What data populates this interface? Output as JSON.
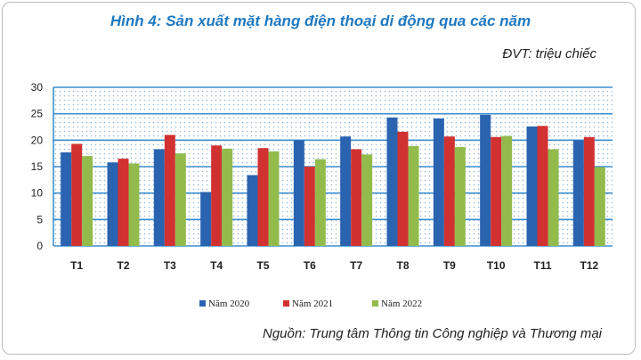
{
  "page": {
    "title": "Hình 4: Sản xuất mặt hàng điện thoại di động qua các năm",
    "unit": "ĐVT: triệu chiếc",
    "source": "Nguồn: Trung tâm Thông tin Công nghiệp và Thương mại"
  },
  "chart_data": {
    "type": "bar",
    "title": "Hình 4: Sản xuất mặt hàng điện thoại di động qua các năm",
    "xlabel": "",
    "ylabel": "",
    "ylim": [
      0,
      30
    ],
    "yticks": [
      0,
      5,
      10,
      15,
      20,
      25,
      30
    ],
    "grid": true,
    "legend_position": "bottom",
    "categories": [
      "T1",
      "T2",
      "T3",
      "T4",
      "T5",
      "T6",
      "T7",
      "T8",
      "T9",
      "T10",
      "T11",
      "T12"
    ],
    "series": [
      {
        "name": "Năm 2020",
        "color": "#2a63b0",
        "values": [
          17.7,
          15.8,
          18.3,
          10.2,
          13.4,
          20.0,
          20.7,
          24.3,
          24.1,
          24.8,
          22.6,
          20.0
        ]
      },
      {
        "name": "Năm 2021",
        "color": "#d23131",
        "values": [
          19.3,
          16.5,
          21.0,
          19.0,
          18.5,
          15.0,
          18.3,
          21.6,
          20.7,
          20.6,
          22.7,
          20.6
        ]
      },
      {
        "name": "Năm 2022",
        "color": "#92bb4c",
        "values": [
          17.0,
          15.6,
          17.5,
          18.4,
          17.9,
          16.4,
          17.3,
          18.9,
          18.7,
          20.8,
          18.3,
          14.9
        ]
      }
    ]
  }
}
